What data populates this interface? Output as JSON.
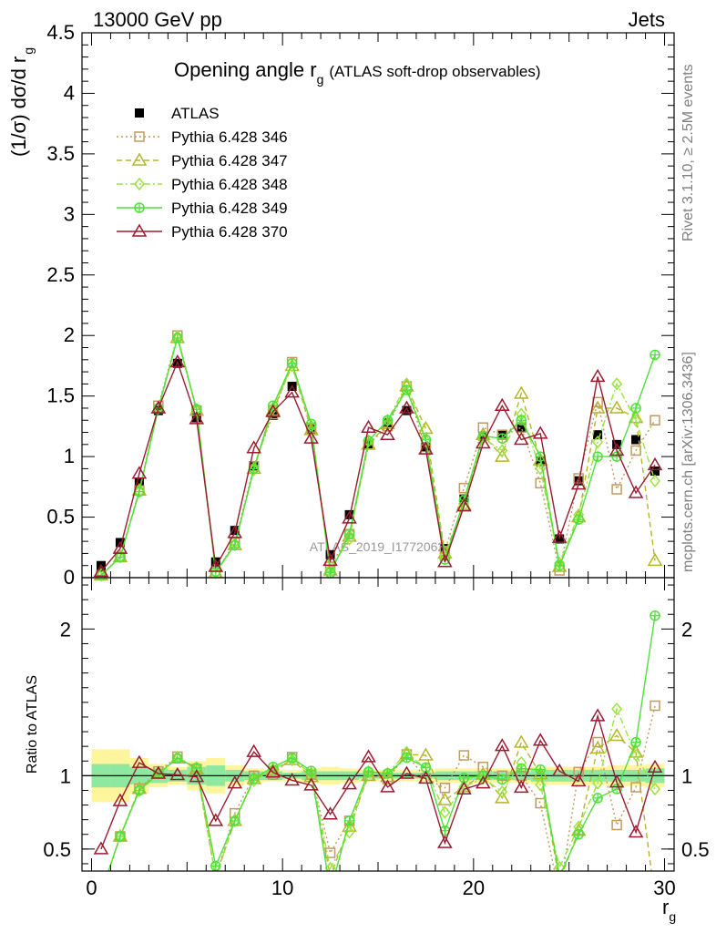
{
  "header": {
    "left": "13000 GeV pp",
    "right": "Jets"
  },
  "side_labels": {
    "rivet": "Rivet 3.1.10, ≥ 2.5M events",
    "mcplots": "mcplots.cern.ch [arXiv:1306.3436]"
  },
  "watermark": "ATLAS_2019_I1772062",
  "chart_data": {
    "type": "scatter",
    "title_main": "Opening angle r",
    "title_sub": "g",
    "title_note": "(ATLAS soft-drop observables)",
    "ylabel": "(1/σ) dσ/d r",
    "ylabel_sub": "g",
    "xlabel": "r",
    "xlabel_sub": "g",
    "ratio_ylabel": "Ratio to ATLAS",
    "xlim": [
      -0.5,
      30.5
    ],
    "ylim": [
      0,
      4.5
    ],
    "ratio_ylim": [
      0.35,
      2.35
    ],
    "x_ticks": [
      0,
      10,
      20,
      30
    ],
    "y_ticks": [
      0,
      0.5,
      1,
      1.5,
      2,
      2.5,
      3,
      3.5,
      4,
      4.5
    ],
    "ratio_ticks": [
      0.5,
      1,
      2
    ],
    "legend_position": "top-left",
    "x": [
      0.5,
      1.5,
      2.5,
      3.5,
      4.5,
      5.5,
      6.5,
      7.5,
      8.5,
      9.5,
      10.5,
      11.5,
      12.5,
      13.5,
      14.5,
      15.5,
      16.5,
      17.5,
      18.5,
      19.5,
      20.5,
      21.5,
      22.5,
      23.5,
      24.5,
      25.5,
      26.5,
      27.5,
      28.5,
      29.5
    ],
    "series": [
      {
        "name": "ATLAS",
        "color": "#000000",
        "marker": "filled-square",
        "line": "none",
        "values": [
          0.1,
          0.29,
          0.79,
          1.38,
          1.77,
          1.32,
          0.13,
          0.39,
          0.92,
          1.34,
          1.58,
          1.23,
          0.19,
          0.52,
          1.1,
          1.28,
          1.38,
          1.08,
          0.24,
          0.65,
          1.17,
          1.18,
          1.24,
          0.96,
          0.32,
          0.8,
          1.18,
          1.1,
          1.14,
          0.88
        ]
      },
      {
        "name": "Pythia 6.428 346",
        "color": "#c09a62",
        "marker": "open-square",
        "line": "dotted",
        "values": [
          0.02,
          0.17,
          0.72,
          1.42,
          2.0,
          1.38,
          0.04,
          0.29,
          0.92,
          1.35,
          1.78,
          1.24,
          0.09,
          0.36,
          1.1,
          1.25,
          1.58,
          1.06,
          0.22,
          0.74,
          1.24,
          1.18,
          1.24,
          0.78,
          0.06,
          0.82,
          1.45,
          0.73,
          1.05,
          1.3
        ]
      },
      {
        "name": "Pythia 6.428 347",
        "color": "#b5b52b",
        "marker": "open-triangle",
        "line": "dashed",
        "values": [
          0.02,
          0.17,
          0.72,
          1.4,
          1.98,
          1.38,
          0.04,
          0.27,
          0.9,
          1.38,
          1.75,
          1.22,
          0.06,
          0.34,
          1.1,
          1.27,
          1.58,
          1.23,
          0.2,
          0.6,
          1.18,
          1.0,
          1.52,
          0.97,
          0.09,
          0.5,
          1.4,
          1.4,
          1.32,
          0.14
        ]
      },
      {
        "name": "Pythia 6.428 348",
        "color": "#9be33f",
        "marker": "open-diamond",
        "line": "dashdot",
        "values": [
          0.02,
          0.17,
          0.71,
          1.4,
          1.99,
          1.39,
          0.04,
          0.27,
          0.89,
          1.4,
          1.75,
          1.25,
          0.07,
          0.32,
          1.13,
          1.3,
          1.6,
          1.13,
          0.18,
          0.6,
          1.15,
          1.05,
          1.35,
          0.9,
          0.12,
          0.52,
          1.12,
          1.6,
          1.3,
          0.8
        ]
      },
      {
        "name": "Pythia 6.428 349",
        "color": "#4ee13a",
        "marker": "open-cross-circle",
        "line": "solid",
        "values": [
          0.02,
          0.17,
          0.71,
          1.4,
          1.98,
          1.39,
          0.05,
          0.27,
          0.9,
          1.42,
          1.77,
          1.27,
          0.04,
          0.36,
          1.13,
          1.3,
          1.55,
          1.14,
          0.15,
          0.64,
          1.17,
          1.15,
          1.3,
          1.0,
          0.1,
          0.48,
          1.0,
          1.0,
          1.4,
          1.84
        ]
      },
      {
        "name": "Pythia 6.428 370",
        "color": "#9b1b30",
        "marker": "open-triangle",
        "line": "solid",
        "values": [
          0.05,
          0.24,
          0.86,
          1.4,
          1.78,
          1.31,
          0.09,
          0.37,
          1.07,
          1.37,
          1.53,
          1.15,
          0.14,
          0.49,
          1.24,
          1.18,
          1.4,
          1.06,
          0.13,
          0.59,
          1.11,
          1.42,
          1.14,
          1.19,
          0.33,
          0.77,
          1.66,
          1.05,
          0.7,
          0.93
        ]
      }
    ],
    "ratio_band_outer": [
      0.18,
      0.18,
      0.12,
      0.08,
      0.06,
      0.1,
      0.12,
      0.07,
      0.05,
      0.04,
      0.04,
      0.05,
      0.06,
      0.05,
      0.04,
      0.04,
      0.04,
      0.04,
      0.05,
      0.05,
      0.05,
      0.05,
      0.05,
      0.06,
      0.06,
      0.06,
      0.06,
      0.07,
      0.07,
      0.08
    ],
    "ratio_band_inner": [
      0.08,
      0.08,
      0.06,
      0.05,
      0.04,
      0.06,
      0.07,
      0.04,
      0.03,
      0.03,
      0.02,
      0.03,
      0.03,
      0.03,
      0.02,
      0.02,
      0.02,
      0.02,
      0.03,
      0.03,
      0.03,
      0.03,
      0.03,
      0.04,
      0.04,
      0.04,
      0.04,
      0.04,
      0.04,
      0.05
    ]
  },
  "colors": {
    "band_outer": "#fff59d",
    "band_inner": "#8ee8a0",
    "axis": "#000000"
  }
}
